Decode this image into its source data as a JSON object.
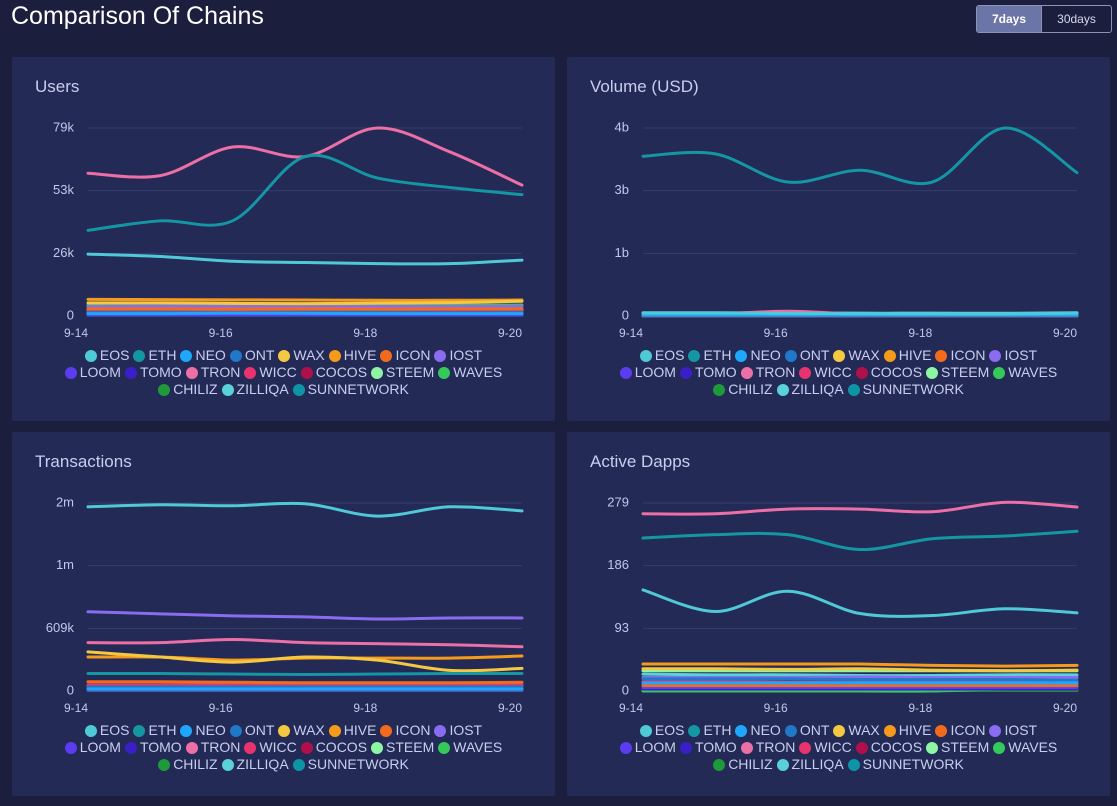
{
  "header": {
    "title": "Comparison Of Chains",
    "buttons": [
      "7days",
      "30days"
    ],
    "active": 0
  },
  "chart_data": [
    {
      "type": "line",
      "title": "Users",
      "categories": [
        "9-14",
        null,
        "9-16",
        null,
        "9-18",
        null,
        "9-20"
      ],
      "ylim": [
        0,
        79000
      ],
      "yticks": [
        0,
        {
          "value": 26300,
          "label": "26k"
        },
        {
          "value": 52700,
          "label": "53k"
        },
        {
          "value": 79000,
          "label": "79k"
        }
      ],
      "grid": true,
      "series": [
        {
          "name": "EOS",
          "color": "#4fc9d6",
          "values": [
            26000,
            25000,
            23000,
            22500,
            22000,
            22000,
            23500
          ]
        },
        {
          "name": "ETH",
          "color": "#1596a3",
          "values": [
            36000,
            40000,
            40000,
            67000,
            58000,
            54000,
            51000
          ]
        },
        {
          "name": "NEO",
          "color": "#1ea7fd",
          "values": [
            1000,
            1000,
            1200,
            1100,
            1000,
            1000,
            1000
          ]
        },
        {
          "name": "ONT",
          "color": "#1f78c8",
          "values": [
            1500,
            1500,
            1400,
            1500,
            1500,
            1400,
            1500
          ]
        },
        {
          "name": "WAX",
          "color": "#f5c842",
          "values": [
            5500,
            5500,
            5300,
            5200,
            5400,
            5600,
            6200
          ]
        },
        {
          "name": "HIVE",
          "color": "#f59a1b",
          "values": [
            7000,
            6900,
            6800,
            6700,
            6600,
            6600,
            6700
          ]
        },
        {
          "name": "ICON",
          "color": "#f26b1d",
          "values": [
            3000,
            3000,
            2900,
            3000,
            2900,
            3000,
            3000
          ]
        },
        {
          "name": "IOST",
          "color": "#8a6cf0",
          "values": [
            4000,
            4100,
            4000,
            3900,
            4000,
            4000,
            4100
          ]
        },
        {
          "name": "LOOM",
          "color": "#5b3cf0",
          "values": [
            500,
            500,
            500,
            500,
            500,
            500,
            500
          ]
        },
        {
          "name": "TOMO",
          "color": "#3a1fc8",
          "values": [
            300,
            300,
            300,
            300,
            300,
            300,
            300
          ]
        },
        {
          "name": "TRON",
          "color": "#ec6fa6",
          "values": [
            60000,
            59000,
            71000,
            67000,
            79000,
            69000,
            55000
          ]
        },
        {
          "name": "WICC",
          "color": "#e8336f",
          "values": [
            2000,
            2000,
            2100,
            2000,
            2000,
            2000,
            2100
          ]
        },
        {
          "name": "COCOS",
          "color": "#b0104a",
          "values": [
            1000,
            1000,
            1000,
            1000,
            1000,
            1000,
            1000
          ]
        },
        {
          "name": "STEEM",
          "color": "#8ef5a4",
          "values": [
            2500,
            2500,
            2400,
            2500,
            2400,
            2400,
            2500
          ]
        },
        {
          "name": "WAVES",
          "color": "#35c95a",
          "values": [
            4500,
            4600,
            4500,
            4400,
            4500,
            4500,
            4600
          ]
        },
        {
          "name": "CHILIZ",
          "color": "#1f9a3a",
          "values": [
            200,
            200,
            200,
            200,
            200,
            200,
            200
          ]
        },
        {
          "name": "ZILLIQA",
          "color": "#5ad0d8",
          "values": [
            1000,
            1000,
            1000,
            1000,
            1000,
            1000,
            1000
          ]
        },
        {
          "name": "SUNNETWORK",
          "color": "#0d95a6",
          "values": [
            500,
            500,
            500,
            500,
            500,
            500,
            500
          ]
        }
      ]
    },
    {
      "type": "line",
      "title": "Volume (USD)",
      "categories": [
        "9-14",
        null,
        "9-16",
        null,
        "9-18",
        null,
        "9-20"
      ],
      "ylim": [
        0,
        4000000000
      ],
      "yticks": [
        0,
        {
          "value": 1333000000,
          "label": "1b"
        },
        {
          "value": 2667000000,
          "label": "3b"
        },
        {
          "value": 4000000000,
          "label": "4b"
        }
      ],
      "grid": true,
      "series": [
        {
          "name": "EOS",
          "color": "#4fc9d6",
          "values": [
            60000000,
            62000000,
            55000000,
            50000000,
            48000000,
            45000000,
            60000000
          ]
        },
        {
          "name": "ETH",
          "color": "#1596a3",
          "values": [
            3400000000,
            3450000000,
            2850000000,
            3100000000,
            2850000000,
            4000000000,
            3050000000
          ]
        },
        {
          "name": "NEO",
          "color": "#1ea7fd",
          "values": [
            20000000,
            20000000,
            20000000,
            20000000,
            20000000,
            20000000,
            20000000
          ]
        },
        {
          "name": "ONT",
          "color": "#1f78c8",
          "values": [
            10000000,
            10000000,
            10000000,
            10000000,
            10000000,
            10000000,
            10000000
          ]
        },
        {
          "name": "WAX",
          "color": "#f5c842",
          "values": [
            10000000,
            10000000,
            10000000,
            10000000,
            10000000,
            10000000,
            10000000
          ]
        },
        {
          "name": "HIVE",
          "color": "#f59a1b",
          "values": [
            10000000,
            10000000,
            10000000,
            10000000,
            10000000,
            10000000,
            10000000
          ]
        },
        {
          "name": "ICON",
          "color": "#f26b1d",
          "values": [
            5000000,
            5000000,
            5000000,
            5000000,
            5000000,
            5000000,
            5000000
          ]
        },
        {
          "name": "IOST",
          "color": "#8a6cf0",
          "values": [
            10000000,
            10000000,
            10000000,
            10000000,
            10000000,
            10000000,
            10000000
          ]
        },
        {
          "name": "LOOM",
          "color": "#5b3cf0",
          "values": [
            5000000,
            5000000,
            5000000,
            5000000,
            5000000,
            5000000,
            5000000
          ]
        },
        {
          "name": "TOMO",
          "color": "#3a1fc8",
          "values": [
            5000000,
            5000000,
            5000000,
            5000000,
            5000000,
            5000000,
            5000000
          ]
        },
        {
          "name": "TRON",
          "color": "#ec6fa6",
          "values": [
            40000000,
            45000000,
            100000000,
            40000000,
            35000000,
            30000000,
            35000000
          ]
        },
        {
          "name": "WICC",
          "color": "#e8336f",
          "values": [
            5000000,
            5000000,
            5000000,
            5000000,
            5000000,
            5000000,
            5000000
          ]
        },
        {
          "name": "COCOS",
          "color": "#b0104a",
          "values": [
            5000000,
            5000000,
            5000000,
            5000000,
            5000000,
            5000000,
            5000000
          ]
        },
        {
          "name": "STEEM",
          "color": "#8ef5a4",
          "values": [
            5000000,
            5000000,
            5000000,
            5000000,
            5000000,
            5000000,
            5000000
          ]
        },
        {
          "name": "WAVES",
          "color": "#35c95a",
          "values": [
            5000000,
            5000000,
            5000000,
            5000000,
            5000000,
            5000000,
            5000000
          ]
        },
        {
          "name": "CHILIZ",
          "color": "#1f9a3a",
          "values": [
            5000000,
            5000000,
            5000000,
            5000000,
            5000000,
            5000000,
            5000000
          ]
        },
        {
          "name": "ZILLIQA",
          "color": "#5ad0d8",
          "values": [
            70000000,
            70000000,
            65000000,
            60000000,
            60000000,
            58000000,
            70000000
          ]
        },
        {
          "name": "SUNNETWORK",
          "color": "#0d95a6",
          "values": [
            5000000,
            5000000,
            5000000,
            5000000,
            5000000,
            5000000,
            5000000
          ]
        }
      ]
    },
    {
      "type": "line",
      "title": "Transactions",
      "categories": [
        "9-14",
        null,
        "9-16",
        null,
        "9-18",
        null,
        "9-20"
      ],
      "ylim": [
        0,
        1827000
      ],
      "yticks": [
        0,
        {
          "value": 609000,
          "label": "609k"
        },
        {
          "value": 1218000,
          "label": "1m"
        },
        {
          "value": 1827000,
          "label": "2m"
        }
      ],
      "grid": true,
      "series": [
        {
          "name": "EOS",
          "color": "#4fc9d6",
          "values": [
            1790000,
            1810000,
            1800000,
            1820000,
            1700000,
            1790000,
            1750000
          ]
        },
        {
          "name": "ETH",
          "color": "#1596a3",
          "values": [
            170000,
            170000,
            165000,
            160000,
            165000,
            170000,
            170000
          ]
        },
        {
          "name": "NEO",
          "color": "#1ea7fd",
          "values": [
            20000,
            20000,
            20000,
            20000,
            20000,
            20000,
            20000
          ]
        },
        {
          "name": "ONT",
          "color": "#1f78c8",
          "values": [
            40000,
            40000,
            40000,
            40000,
            40000,
            40000,
            40000
          ]
        },
        {
          "name": "WAX",
          "color": "#f5c842",
          "values": [
            380000,
            330000,
            280000,
            330000,
            300000,
            200000,
            220000
          ]
        },
        {
          "name": "HIVE",
          "color": "#f59a1b",
          "values": [
            330000,
            330000,
            300000,
            320000,
            320000,
            320000,
            340000
          ]
        },
        {
          "name": "ICON",
          "color": "#f26b1d",
          "values": [
            90000,
            90000,
            85000,
            80000,
            80000,
            80000,
            85000
          ]
        },
        {
          "name": "IOST",
          "color": "#8a6cf0",
          "values": [
            770000,
            750000,
            730000,
            720000,
            700000,
            710000,
            710000
          ]
        },
        {
          "name": "LOOM",
          "color": "#5b3cf0",
          "values": [
            10000,
            10000,
            10000,
            10000,
            10000,
            10000,
            10000
          ]
        },
        {
          "name": "TOMO",
          "color": "#3a1fc8",
          "values": [
            10000,
            10000,
            10000,
            10000,
            10000,
            10000,
            10000
          ]
        },
        {
          "name": "TRON",
          "color": "#ec6fa6",
          "values": [
            470000,
            470000,
            500000,
            470000,
            460000,
            450000,
            430000
          ]
        },
        {
          "name": "WICC",
          "color": "#e8336f",
          "values": [
            60000,
            60000,
            60000,
            55000,
            55000,
            60000,
            60000
          ]
        },
        {
          "name": "COCOS",
          "color": "#b0104a",
          "values": [
            30000,
            30000,
            30000,
            30000,
            30000,
            30000,
            30000
          ]
        },
        {
          "name": "STEEM",
          "color": "#8ef5a4",
          "values": [
            50000,
            50000,
            50000,
            50000,
            50000,
            50000,
            50000
          ]
        },
        {
          "name": "WAVES",
          "color": "#35c95a",
          "values": [
            20000,
            20000,
            20000,
            20000,
            20000,
            20000,
            20000
          ]
        },
        {
          "name": "CHILIZ",
          "color": "#1f9a3a",
          "values": [
            5000,
            5000,
            5000,
            5000,
            5000,
            5000,
            5000
          ]
        },
        {
          "name": "ZILLIQA",
          "color": "#5ad0d8",
          "values": [
            30000,
            30000,
            30000,
            30000,
            30000,
            30000,
            30000
          ]
        },
        {
          "name": "SUNNETWORK",
          "color": "#0d95a6",
          "values": [
            20000,
            20000,
            20000,
            20000,
            20000,
            20000,
            20000
          ]
        }
      ]
    },
    {
      "type": "line",
      "title": "Active Dapps",
      "categories": [
        "9-14",
        null,
        "9-16",
        null,
        "9-18",
        null,
        "9-20"
      ],
      "ylim": [
        0,
        279
      ],
      "yticks": [
        0,
        93,
        186,
        279
      ],
      "grid": true,
      "series": [
        {
          "name": "EOS",
          "color": "#4fc9d6",
          "values": [
            150,
            118,
            148,
            115,
            112,
            122,
            116
          ]
        },
        {
          "name": "ETH",
          "color": "#1596a3",
          "values": [
            227,
            232,
            232,
            210,
            226,
            230,
            237
          ]
        },
        {
          "name": "NEO",
          "color": "#1ea7fd",
          "values": [
            12,
            12,
            12,
            12,
            12,
            12,
            12
          ]
        },
        {
          "name": "ONT",
          "color": "#1f78c8",
          "values": [
            18,
            18,
            18,
            17,
            17,
            17,
            16
          ]
        },
        {
          "name": "WAX",
          "color": "#f5c842",
          "values": [
            33,
            33,
            32,
            33,
            31,
            30,
            31
          ]
        },
        {
          "name": "HIVE",
          "color": "#f59a1b",
          "values": [
            40,
            40,
            40,
            40,
            38,
            37,
            38
          ]
        },
        {
          "name": "ICON",
          "color": "#f26b1d",
          "values": [
            8,
            8,
            8,
            8,
            8,
            8,
            8
          ]
        },
        {
          "name": "IOST",
          "color": "#8a6cf0",
          "values": [
            20,
            20,
            20,
            21,
            20,
            20,
            20
          ]
        },
        {
          "name": "LOOM",
          "color": "#5b3cf0",
          "values": [
            5,
            5,
            5,
            5,
            5,
            5,
            5
          ]
        },
        {
          "name": "TOMO",
          "color": "#3a1fc8",
          "values": [
            3,
            3,
            3,
            3,
            3,
            3,
            3
          ]
        },
        {
          "name": "TRON",
          "color": "#ec6fa6",
          "values": [
            263,
            263,
            270,
            270,
            266,
            280,
            273
          ]
        },
        {
          "name": "WICC",
          "color": "#e8336f",
          "values": [
            14,
            14,
            13,
            13,
            13,
            13,
            13
          ]
        },
        {
          "name": "COCOS",
          "color": "#b0104a",
          "values": [
            6,
            6,
            6,
            6,
            6,
            6,
            6
          ]
        },
        {
          "name": "STEEM",
          "color": "#8ef5a4",
          "values": [
            30,
            30,
            30,
            30,
            30,
            30,
            30
          ]
        },
        {
          "name": "WAVES",
          "color": "#35c95a",
          "values": [
            0,
            0,
            0,
            0,
            0,
            3,
            3
          ]
        },
        {
          "name": "CHILIZ",
          "color": "#1f9a3a",
          "values": [
            1,
            1,
            1,
            1,
            1,
            1,
            1
          ]
        },
        {
          "name": "ZILLIQA",
          "color": "#5ad0d8",
          "values": [
            25,
            24,
            24,
            23,
            23,
            24,
            24
          ]
        },
        {
          "name": "SUNNETWORK",
          "color": "#0d95a6",
          "values": [
            10,
            10,
            10,
            10,
            10,
            10,
            10
          ]
        }
      ]
    }
  ]
}
